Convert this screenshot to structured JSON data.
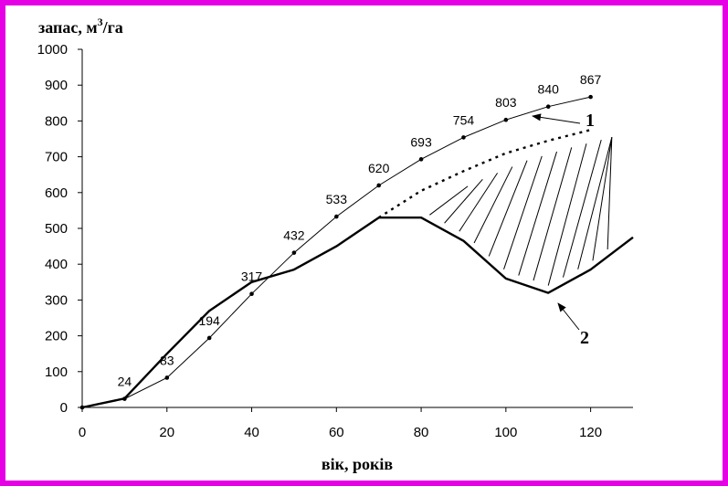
{
  "chart_data": {
    "type": "line",
    "ylabel": "запас, м³/га",
    "ylabel_base": "запас, м",
    "ylabel_sup": "3",
    "ylabel_suffix": "/га",
    "xlabel": "вік, років",
    "xlim": [
      0,
      130
    ],
    "ylim": [
      0,
      1000
    ],
    "xticks": [
      "0",
      "20",
      "40",
      "60",
      "80",
      "100",
      "120"
    ],
    "yticks": [
      "0",
      "100",
      "200",
      "300",
      "400",
      "500",
      "600",
      "700",
      "800",
      "900",
      "1000"
    ],
    "series": [
      {
        "name": "1",
        "x": [
          0,
          10,
          20,
          30,
          40,
          50,
          60,
          70,
          80,
          90,
          100,
          110,
          120
        ],
        "values": [
          0,
          24,
          83,
          194,
          317,
          432,
          533,
          620,
          693,
          754,
          803,
          840,
          867
        ],
        "labels": [
          "",
          "24",
          "83",
          "194",
          "317",
          "432",
          "533",
          "620",
          "693",
          "754",
          "803",
          "840",
          "867"
        ]
      },
      {
        "name": "2",
        "x": [
          0,
          10,
          20,
          30,
          40,
          50,
          60,
          70,
          80,
          90,
          100,
          110,
          120,
          130
        ],
        "values": [
          0,
          25,
          150,
          270,
          350,
          385,
          450,
          530,
          530,
          465,
          360,
          320,
          385,
          475
        ]
      },
      {
        "name": "",
        "style": "dotted",
        "x": [
          70,
          80,
          90,
          100,
          110,
          120
        ],
        "values": [
          530,
          605,
          660,
          710,
          745,
          775
        ]
      }
    ],
    "annotations": [
      "1",
      "2"
    ],
    "hatched_region": "between dotted curve and curve 2, age 80–125"
  }
}
